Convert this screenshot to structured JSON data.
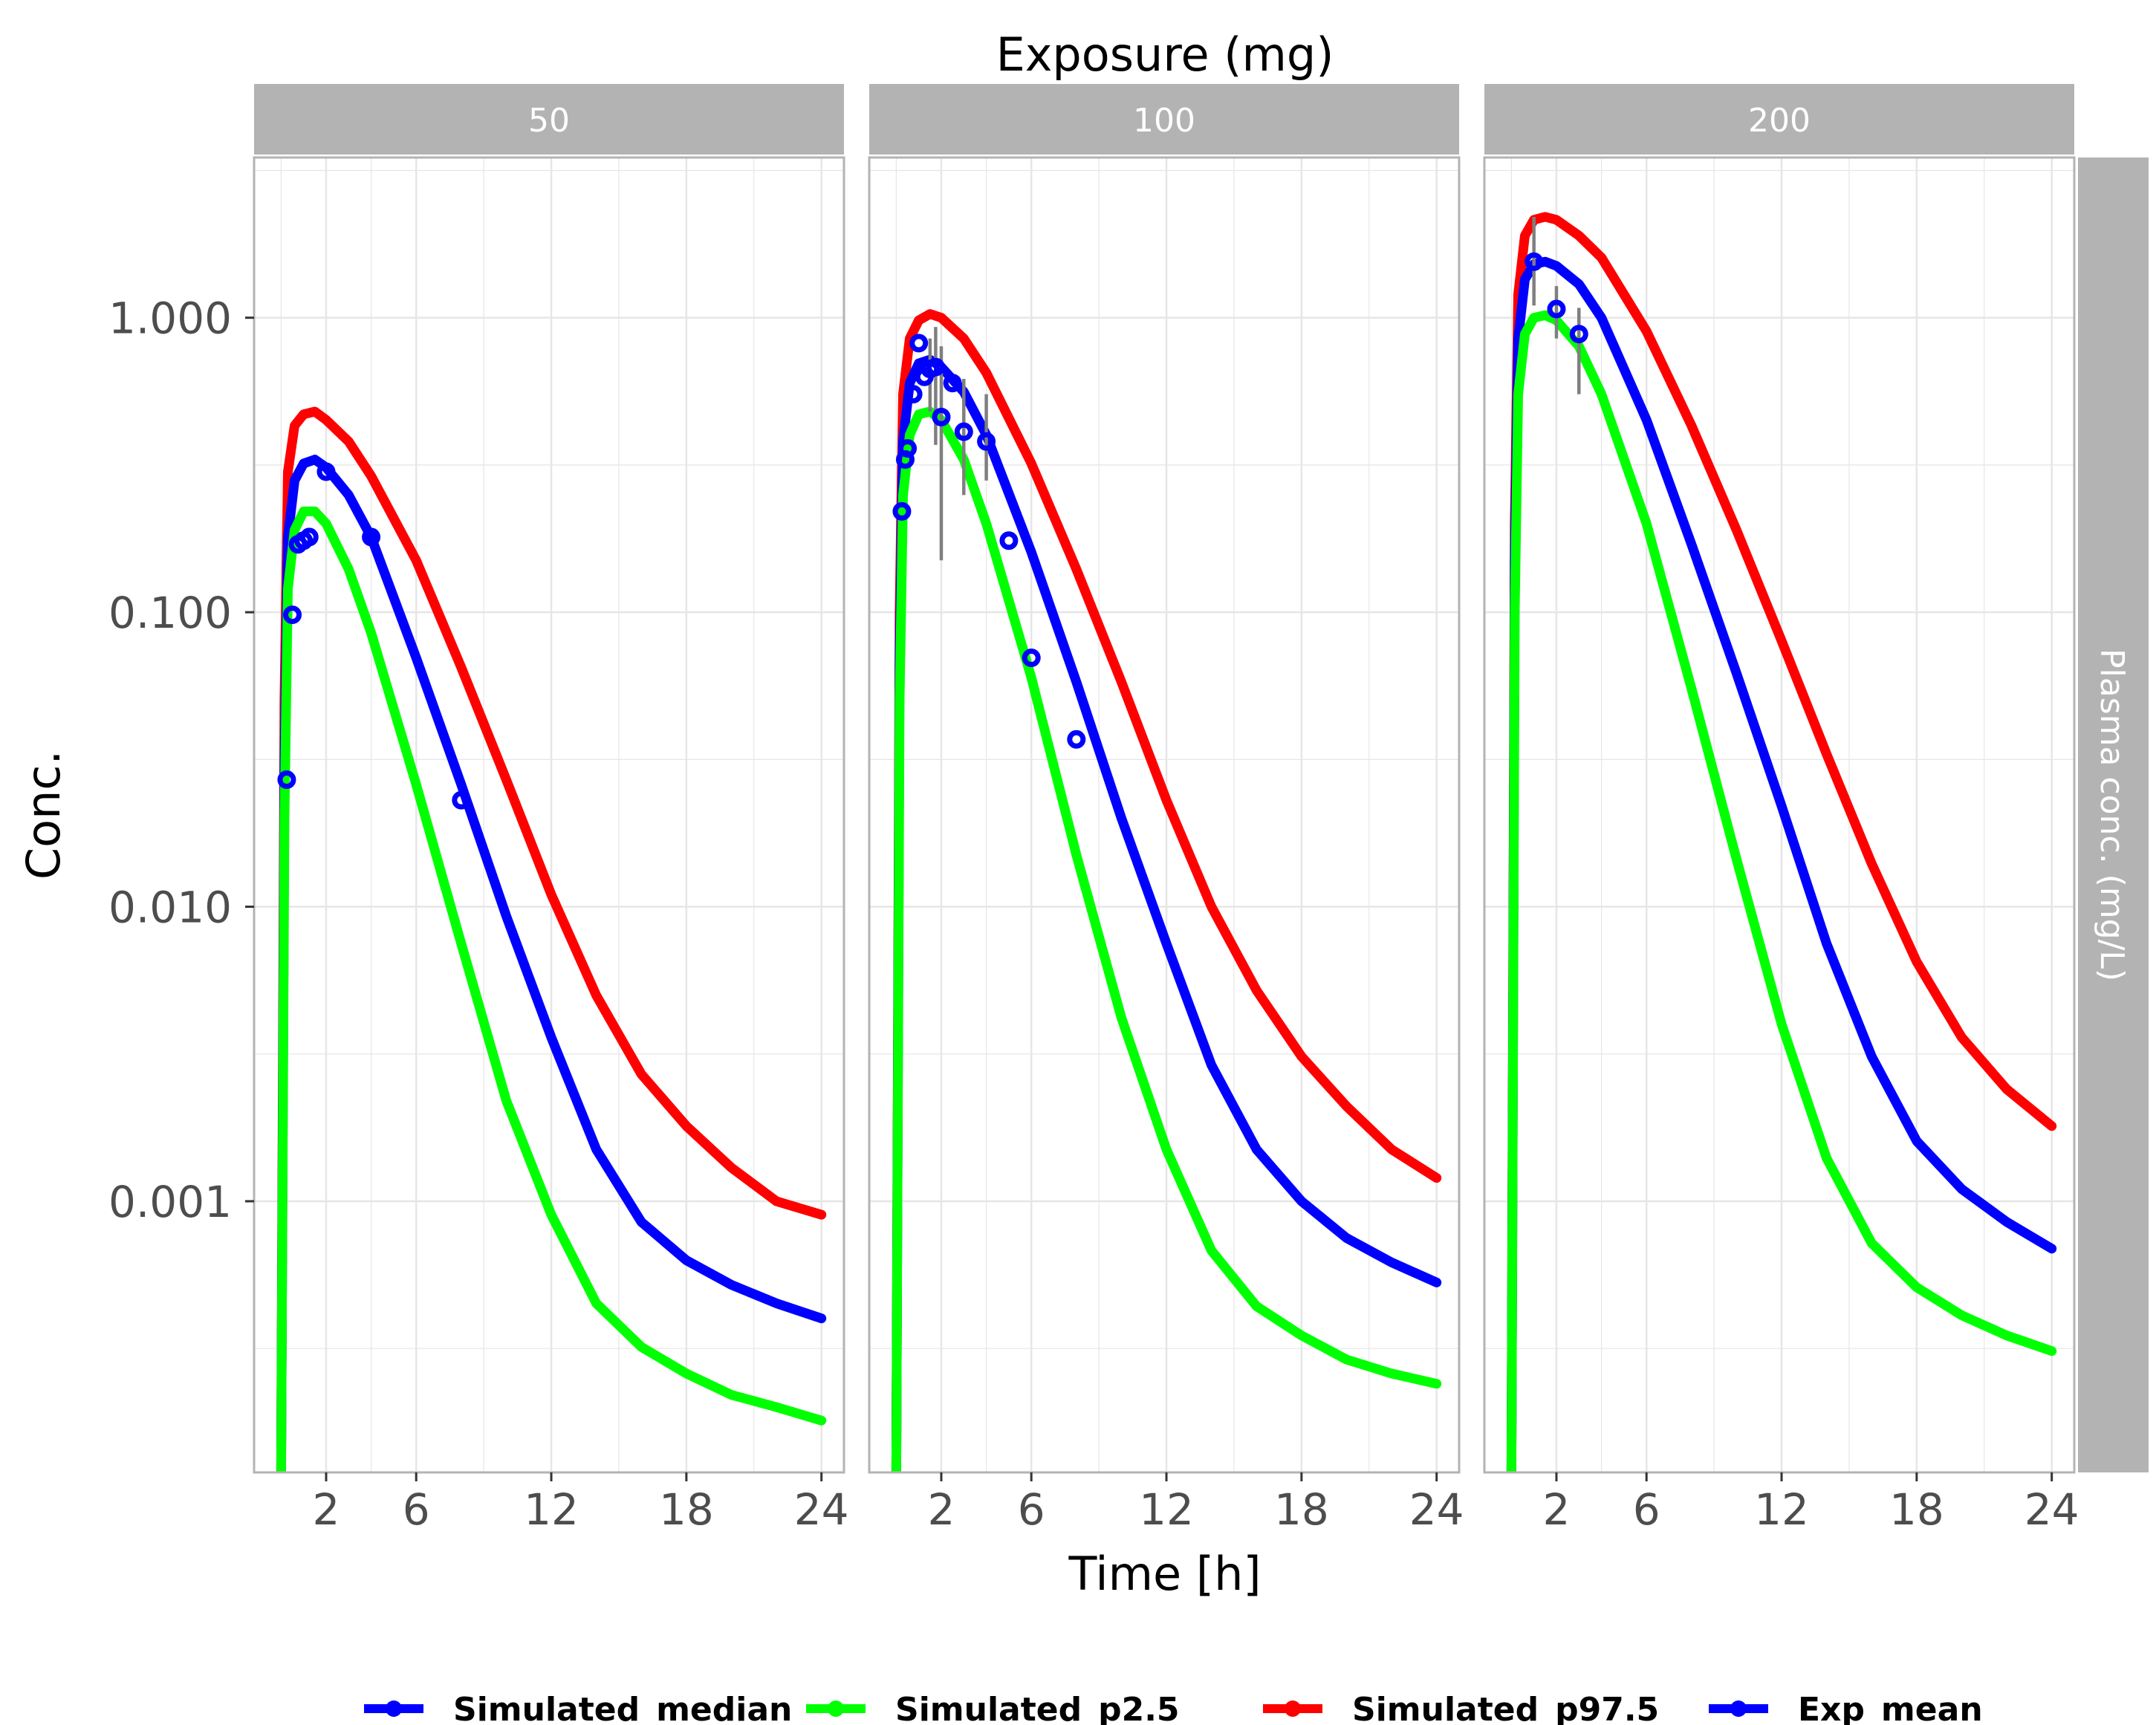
{
  "chart_data": {
    "type": "line",
    "title": "Exposure (mg)",
    "xlabel": "Time [h]",
    "ylabel": "Conc.",
    "row_strip_label": "Plasma conc. (mg/L)",
    "y_scale": "log10",
    "ylim": [
      0.00012,
      3.5
    ],
    "xlim": [
      -1.2,
      25
    ],
    "x_ticks": [
      2,
      6,
      12,
      18,
      24
    ],
    "x_tick_labels": [
      "2",
      "6",
      "12",
      "18",
      "24"
    ],
    "y_ticks": [
      0.001,
      0.01,
      0.1,
      1
    ],
    "y_tick_labels": [
      "0.001",
      "0.010",
      "0.100",
      "1.000"
    ],
    "grid": true,
    "legend_position": "bottom",
    "legend": [
      "Simulated_median",
      "Simulated_p2.5",
      "Simulated_p97.5",
      "Exp_mean"
    ],
    "colors": {
      "Simulated_median": "#0000ff",
      "Simulated_p2.5": "#00ff00",
      "Simulated_p97.5": "#ff0000",
      "Exp_mean": "#0000ff",
      "errorbar": "#7f7f7f",
      "strip": "#b3b3b3",
      "grid": "#e6e6e6",
      "panel_border": "#b3b3b3"
    },
    "panels": [
      {
        "label": "50",
        "series": [
          {
            "name": "Simulated_p97.5",
            "x": [
              0,
              0.15,
              0.3,
              0.6,
              1,
              1.5,
              2,
              3,
              4,
              6,
              8,
              10,
              12,
              14,
              16,
              18,
              20,
              22,
              24
            ],
            "values": [
              0.00012,
              0.05,
              0.3,
              0.43,
              0.47,
              0.48,
              0.45,
              0.38,
              0.29,
              0.15,
              0.065,
              0.027,
              0.011,
              0.005,
              0.0027,
              0.0018,
              0.0013,
              0.001,
              0.0009
            ]
          },
          {
            "name": "Simulated_median",
            "x": [
              0,
              0.15,
              0.3,
              0.6,
              1,
              1.5,
              2,
              3,
              4,
              6,
              8,
              10,
              12,
              14,
              16,
              18,
              20,
              22,
              24
            ],
            "values": [
              0.00012,
              0.03,
              0.18,
              0.28,
              0.32,
              0.33,
              0.31,
              0.25,
              0.18,
              0.07,
              0.026,
              0.0093,
              0.0036,
              0.0015,
              0.00085,
              0.00063,
              0.00052,
              0.00045,
              0.0004
            ]
          },
          {
            "name": "Simulated_p2.5",
            "x": [
              0,
              0.15,
              0.3,
              0.6,
              1,
              1.5,
              2,
              3,
              4,
              6,
              8,
              10,
              12,
              14,
              16,
              18,
              20,
              22,
              24
            ],
            "values": [
              0.00012,
              0.02,
              0.12,
              0.19,
              0.22,
              0.22,
              0.2,
              0.14,
              0.085,
              0.026,
              0.0075,
              0.0022,
              0.0009,
              0.00045,
              0.00032,
              0.00026,
              0.00022,
              0.0002,
              0.00018
            ]
          }
        ],
        "observed": {
          "name": "Exp_mean",
          "x": [
            0.25,
            0.5,
            0.75,
            1,
            1.25,
            2,
            4,
            8
          ],
          "values": [
            0.027,
            0.098,
            0.17,
            0.175,
            0.18,
            0.3,
            0.18,
            0.023
          ],
          "lower": [],
          "upper": []
        }
      },
      {
        "label": "100",
        "series": [
          {
            "name": "Simulated_p97.5",
            "x": [
              0,
              0.15,
              0.3,
              0.6,
              1,
              1.5,
              2,
              3,
              4,
              6,
              8,
              10,
              12,
              14,
              16,
              18,
              20,
              22,
              24
            ],
            "values": [
              0.00012,
              0.1,
              0.55,
              0.85,
              0.98,
              1.03,
              1.0,
              0.85,
              0.65,
              0.32,
              0.14,
              0.058,
              0.023,
              0.01,
              0.0052,
              0.0031,
              0.0021,
              0.0015,
              0.0012
            ]
          },
          {
            "name": "Simulated_median",
            "x": [
              0,
              0.15,
              0.3,
              0.6,
              1,
              1.5,
              2,
              3,
              4,
              6,
              8,
              10,
              12,
              14,
              16,
              18,
              20,
              22,
              24
            ],
            "values": [
              0.00012,
              0.07,
              0.38,
              0.6,
              0.7,
              0.72,
              0.68,
              0.56,
              0.4,
              0.16,
              0.058,
              0.02,
              0.0075,
              0.0029,
              0.0015,
              0.001,
              0.00075,
              0.00062,
              0.00053
            ]
          },
          {
            "name": "Simulated_p2.5",
            "x": [
              0,
              0.15,
              0.3,
              0.6,
              1,
              1.5,
              2,
              3,
              4,
              6,
              8,
              10,
              12,
              14,
              16,
              18,
              20,
              22,
              24
            ],
            "values": [
              0.00012,
              0.05,
              0.25,
              0.4,
              0.47,
              0.48,
              0.45,
              0.33,
              0.2,
              0.06,
              0.015,
              0.0042,
              0.0015,
              0.00068,
              0.00044,
              0.00035,
              0.00029,
              0.00026,
              0.00024
            ]
          }
        ],
        "observed": {
          "name": "Exp_mean",
          "x": [
            0.25,
            0.4,
            0.5,
            0.75,
            1,
            1.25,
            1.5,
            1.75,
            2,
            2.5,
            3,
            4,
            5,
            6,
            8
          ],
          "values": [
            0.22,
            0.33,
            0.36,
            0.55,
            0.82,
            0.63,
            0.67,
            0.68,
            0.46,
            0.6,
            0.41,
            0.38,
            0.175,
            0.07,
            0.037
          ],
          "lower": [
            null,
            null,
            null,
            null,
            null,
            null,
            0.48,
            0.37,
            0.15,
            null,
            0.25,
            0.28,
            null,
            null,
            null
          ],
          "upper": [
            null,
            null,
            null,
            null,
            null,
            null,
            0.85,
            0.93,
            0.8,
            null,
            0.62,
            0.55,
            null,
            null,
            null
          ]
        }
      },
      {
        "label": "200",
        "series": [
          {
            "name": "Simulated_p97.5",
            "x": [
              0,
              0.15,
              0.3,
              0.6,
              1,
              1.5,
              2,
              3,
              4,
              6,
              8,
              10,
              12,
              14,
              16,
              18,
              20,
              22,
              24
            ],
            "values": [
              0.00012,
              0.2,
              1.2,
              1.9,
              2.15,
              2.2,
              2.15,
              1.9,
              1.6,
              0.9,
              0.43,
              0.19,
              0.08,
              0.033,
              0.014,
              0.0065,
              0.0036,
              0.0024,
              0.0018
            ]
          },
          {
            "name": "Simulated_median",
            "x": [
              0,
              0.15,
              0.3,
              0.6,
              1,
              1.5,
              2,
              3,
              4,
              6,
              8,
              10,
              12,
              14,
              16,
              18,
              20,
              22,
              24
            ],
            "values": [
              0.00012,
              0.15,
              0.85,
              1.35,
              1.52,
              1.55,
              1.5,
              1.3,
              1.0,
              0.45,
              0.17,
              0.062,
              0.022,
              0.0075,
              0.0031,
              0.0016,
              0.0011,
              0.00085,
              0.00069
            ]
          },
          {
            "name": "Simulated_p2.5",
            "x": [
              0,
              0.15,
              0.3,
              0.6,
              1,
              1.5,
              2,
              3,
              4,
              6,
              8,
              10,
              12,
              14,
              16,
              18,
              20,
              22,
              24
            ],
            "values": [
              0.00012,
              0.1,
              0.55,
              0.88,
              1.0,
              1.02,
              0.98,
              0.8,
              0.55,
              0.2,
              0.055,
              0.0145,
              0.004,
              0.0014,
              0.00072,
              0.00051,
              0.00041,
              0.00035,
              0.00031
            ]
          }
        ],
        "observed": {
          "name": "Exp_mean",
          "x": [
            1,
            2,
            3
          ],
          "values": [
            1.55,
            1.07,
            0.88
          ],
          "lower": [
            1.1,
            0.85,
            0.55
          ],
          "upper": [
            2.2,
            1.28,
            1.08
          ]
        }
      }
    ]
  }
}
